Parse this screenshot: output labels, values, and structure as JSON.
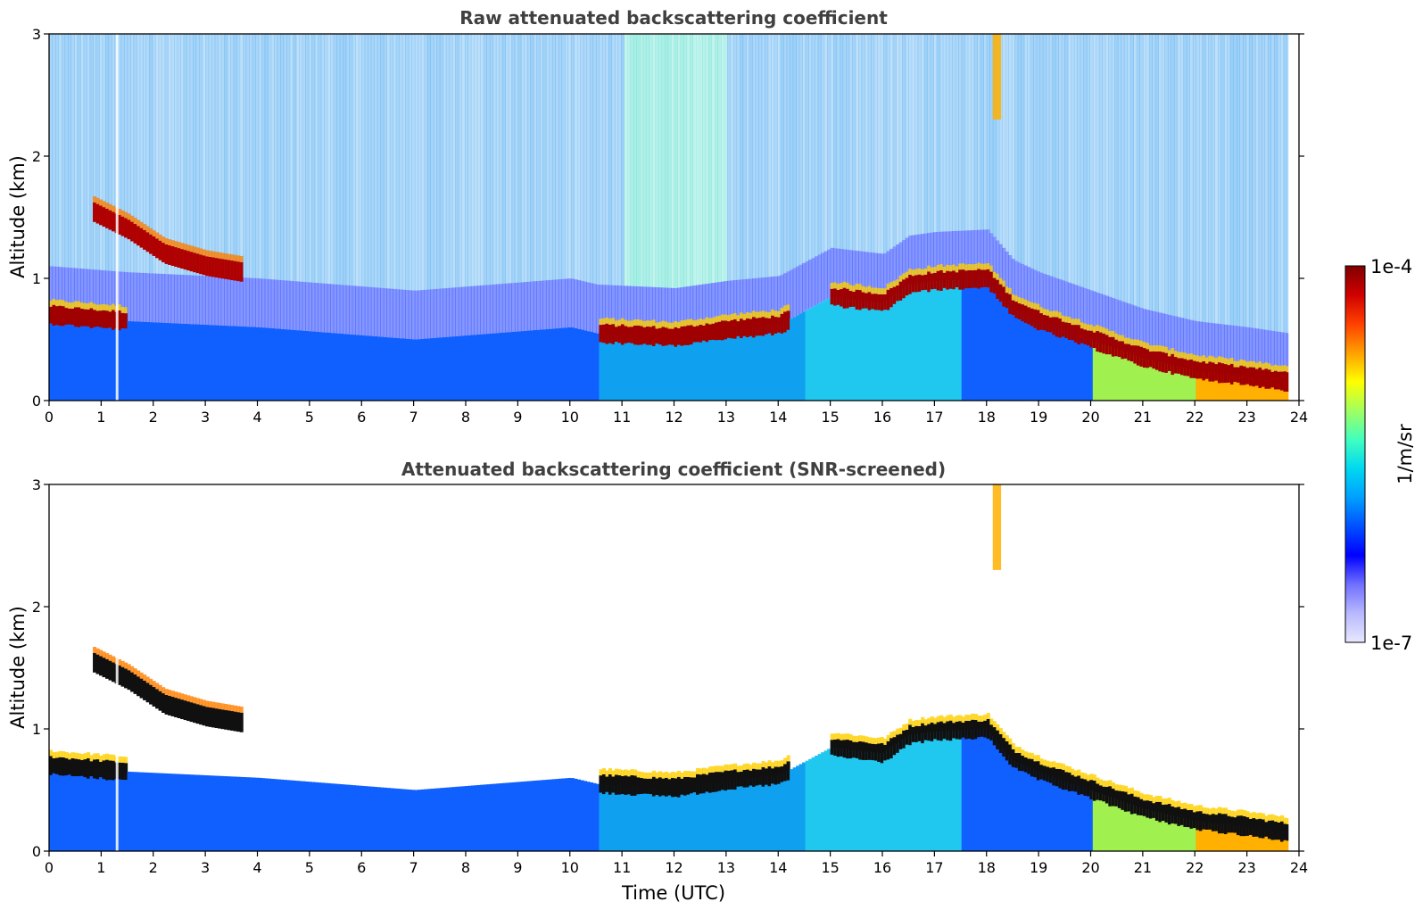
{
  "chart_data": [
    {
      "type": "heatmap",
      "title": "Raw attenuated backscattering coefficient",
      "xlabel": "",
      "ylabel": "Altitude (km)",
      "xlim": [
        0,
        24
      ],
      "ylim": [
        0,
        3
      ],
      "xticks": [
        0,
        1,
        2,
        3,
        4,
        5,
        6,
        7,
        8,
        9,
        10,
        11,
        12,
        13,
        14,
        15,
        16,
        17,
        18,
        19,
        20,
        21,
        22,
        23,
        24
      ],
      "yticks": [
        0,
        1,
        2,
        3
      ],
      "features": {
        "cloud_layer": [
          [
            0.8,
            1.55
          ],
          [
            1.5,
            1.4
          ],
          [
            2.2,
            1.2
          ],
          [
            3.0,
            1.1
          ],
          [
            3.7,
            1.05
          ]
        ],
        "low_layer": [
          [
            0.0,
            0.7
          ],
          [
            1.5,
            0.65
          ],
          [
            4.0,
            0.6
          ],
          [
            7.0,
            0.5
          ],
          [
            10.0,
            0.6
          ],
          [
            10.5,
            0.55
          ],
          [
            12.0,
            0.52
          ],
          [
            13.0,
            0.58
          ],
          [
            14.0,
            0.62
          ],
          [
            15.0,
            0.85
          ],
          [
            16.0,
            0.8
          ],
          [
            16.5,
            0.95
          ],
          [
            17.0,
            0.98
          ],
          [
            18.0,
            1.0
          ],
          [
            18.5,
            0.75
          ],
          [
            19.0,
            0.65
          ],
          [
            20.0,
            0.5
          ],
          [
            21.0,
            0.35
          ],
          [
            22.0,
            0.25
          ],
          [
            23.0,
            0.2
          ],
          [
            23.8,
            0.15
          ]
        ],
        "plume": {
          "x": 18.2,
          "ybottom": 2.3,
          "ytop": 3.0
        }
      }
    },
    {
      "type": "heatmap",
      "title": "Attenuated backscattering coefficient (SNR-screened)",
      "xlabel": "Time (UTC)",
      "ylabel": "Altitude (km)",
      "xlim": [
        0,
        24
      ],
      "ylim": [
        0,
        3
      ],
      "xticks": [
        0,
        1,
        2,
        3,
        4,
        5,
        6,
        7,
        8,
        9,
        10,
        11,
        12,
        13,
        14,
        15,
        16,
        17,
        18,
        19,
        20,
        21,
        22,
        23,
        24
      ],
      "yticks": [
        0,
        1,
        2,
        3
      ],
      "features": {
        "cloud_layer": [
          [
            0.8,
            1.55
          ],
          [
            1.5,
            1.4
          ],
          [
            2.2,
            1.2
          ],
          [
            3.0,
            1.1
          ],
          [
            3.7,
            1.05
          ]
        ],
        "low_layer": [
          [
            0.0,
            0.7
          ],
          [
            1.5,
            0.65
          ],
          [
            4.0,
            0.6
          ],
          [
            7.0,
            0.5
          ],
          [
            10.0,
            0.6
          ],
          [
            10.5,
            0.55
          ],
          [
            12.0,
            0.52
          ],
          [
            13.0,
            0.58
          ],
          [
            14.0,
            0.62
          ],
          [
            15.0,
            0.85
          ],
          [
            16.0,
            0.8
          ],
          [
            16.5,
            0.95
          ],
          [
            17.0,
            0.98
          ],
          [
            18.0,
            1.0
          ],
          [
            18.5,
            0.75
          ],
          [
            19.0,
            0.65
          ],
          [
            20.0,
            0.5
          ],
          [
            21.0,
            0.35
          ],
          [
            22.0,
            0.25
          ],
          [
            23.0,
            0.2
          ],
          [
            23.8,
            0.15
          ]
        ],
        "plume": {
          "x": 18.2,
          "ybottom": 2.3,
          "ytop": 3.0
        }
      }
    }
  ],
  "colorbar": {
    "max_label": "1e-4",
    "min_label": "1e-7",
    "unit_label": "1/m/sr",
    "colors": [
      "#e8e8ff",
      "#b8b8ff",
      "#7070ff",
      "#0000ff",
      "#0050ff",
      "#00a0ff",
      "#00d8f0",
      "#40ffc0",
      "#a0ff60",
      "#ffff00",
      "#ffa000",
      "#ff4000",
      "#d00000",
      "#800000"
    ]
  }
}
